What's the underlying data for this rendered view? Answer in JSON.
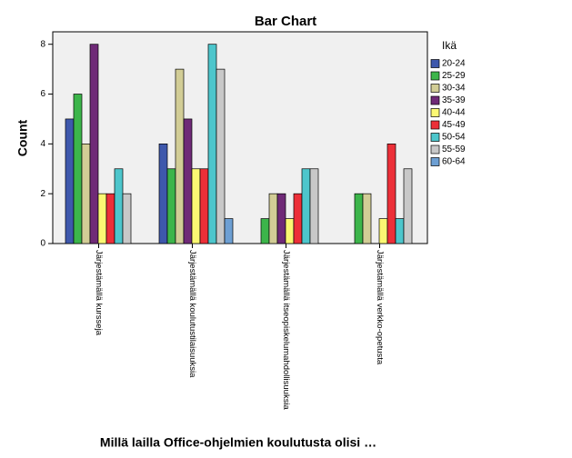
{
  "chart_data": {
    "type": "bar",
    "title": "Bar Chart",
    "x_label": "Millä lailla Office-ohjelmien koulutusta olisi …",
    "y_label": "Count",
    "legend_title": "Ikä",
    "categories": [
      "Järjestämällä kursseja",
      "Järjestämällä koulutustilaisuuksia",
      "Järjestämällä itseopiskelumahdollisuuksia",
      "Järjestämällä verkko-opetusta"
    ],
    "series": [
      {
        "name": "20-24",
        "color": "#3e58ac",
        "values": [
          5,
          4,
          null,
          null
        ]
      },
      {
        "name": "25-29",
        "color": "#3cb54a",
        "values": [
          6,
          3,
          1,
          2
        ]
      },
      {
        "name": "30-34",
        "color": "#d2cd96",
        "values": [
          4,
          7,
          2,
          2
        ]
      },
      {
        "name": "35-39",
        "color": "#6f2a77",
        "values": [
          8,
          5,
          2,
          null
        ]
      },
      {
        "name": "40-44",
        "color": "#fbf873",
        "values": [
          2,
          3,
          1,
          1
        ]
      },
      {
        "name": "45-49",
        "color": "#ec2f38",
        "values": [
          2,
          3,
          2,
          4
        ]
      },
      {
        "name": "50-54",
        "color": "#4dc6cc",
        "values": [
          3,
          8,
          3,
          1
        ]
      },
      {
        "name": "55-59",
        "color": "#c8c8c8",
        "values": [
          2,
          7,
          3,
          3
        ]
      },
      {
        "name": "60-64",
        "color": "#6d9fd3",
        "values": [
          null,
          1,
          null,
          null
        ]
      }
    ],
    "ylim": [
      0,
      8.5
    ],
    "yticks": [
      0,
      2,
      4,
      6,
      8
    ]
  }
}
